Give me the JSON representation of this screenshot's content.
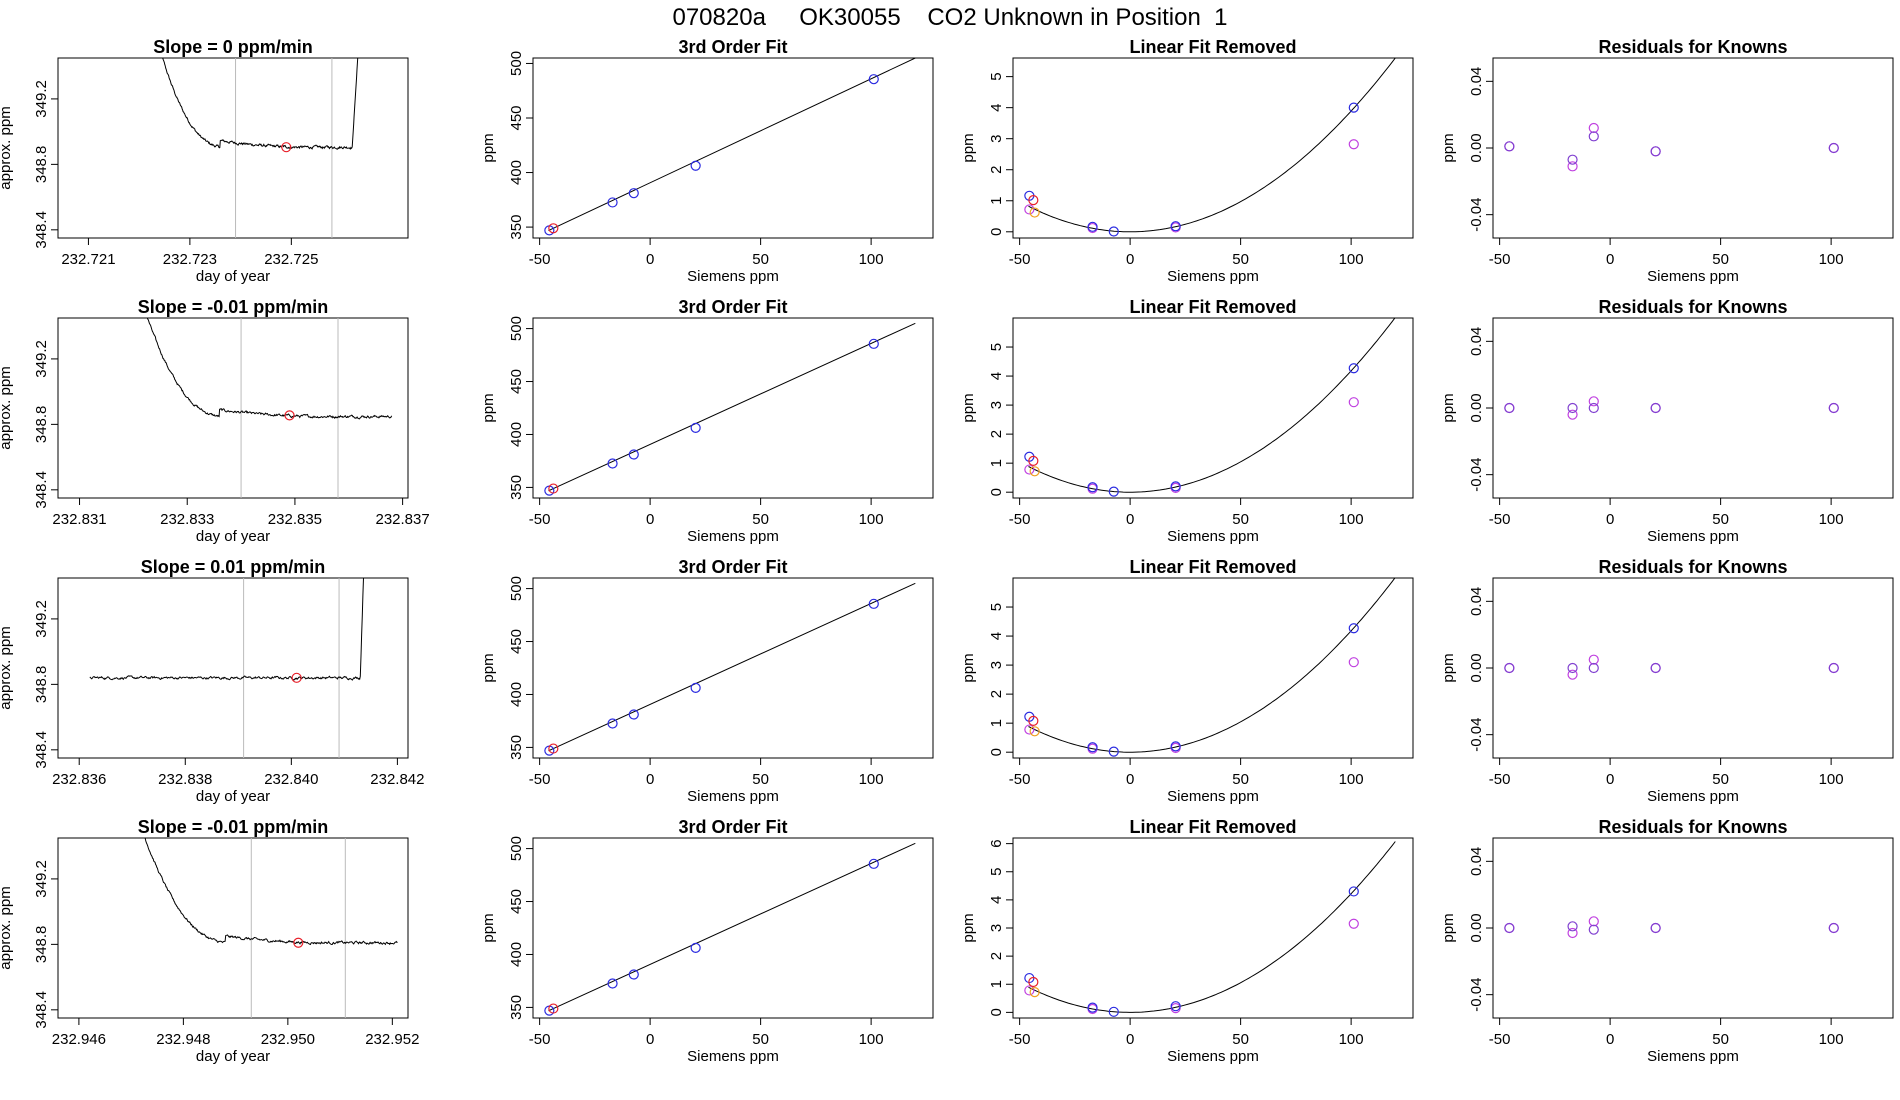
{
  "page_title": "070820a     OK30055    CO2 Unknown in Position  1",
  "colors": {
    "trace": "#000000",
    "red": "#e8202a",
    "blue": "#2a2ae0",
    "orange": "#f0a020",
    "magenta": "#c040e0",
    "purple": "#8040d0",
    "vline": "#bbbbbb"
  },
  "chart_data": [
    {
      "row": 0,
      "col": 0,
      "type": "line",
      "title": "Slope =  0  ppm/min",
      "xlabel": "day of year",
      "ylabel": "approx. ppm",
      "xlim": [
        232.7204,
        232.7273
      ],
      "ylim": [
        348.35,
        349.45
      ],
      "xticks": [
        232.721,
        232.723,
        232.725
      ],
      "xtick_labels": [
        "232.721",
        "232.723",
        "232.725"
      ],
      "yticks": [
        348.4,
        348.8,
        349.2
      ],
      "ytick_labels": [
        "348.4",
        "348.8",
        "349.2"
      ],
      "trace": {
        "kind": "decay-right-rise",
        "x_start": 232.7224,
        "x_end": 232.7264,
        "y_plateau": 348.905,
        "y_start_high": 349.45,
        "decay_end": 232.7236,
        "rise_start": 232.7262
      },
      "vlines": [
        232.7239,
        232.7258
      ],
      "point": {
        "x": 232.7249,
        "y": 348.905
      }
    },
    {
      "row": 0,
      "col": 1,
      "type": "scatter",
      "title": "3rd Order Fit",
      "xlabel": "Siemens ppm",
      "ylabel": "ppm",
      "xlim": [
        -53,
        128
      ],
      "ylim": [
        340,
        505
      ],
      "xticks": [
        -50,
        0,
        50,
        100
      ],
      "xtick_labels": [
        "-50",
        "0",
        "50",
        "100"
      ],
      "yticks": [
        350,
        400,
        450,
        500
      ],
      "ytick_labels": [
        "350",
        "400",
        "450",
        "500"
      ],
      "line": {
        "x": [
          -46,
          120
        ],
        "y": [
          346.8,
          505
        ]
      },
      "points_blue": [
        {
          "x": -45.6,
          "y": 347
        },
        {
          "x": -17,
          "y": 372.6
        },
        {
          "x": -7.4,
          "y": 381.1
        },
        {
          "x": 20.6,
          "y": 406.2
        },
        {
          "x": 101.2,
          "y": 485.6
        }
      ],
      "points_red": [
        {
          "x": -43.8,
          "y": 348.9
        }
      ]
    },
    {
      "row": 0,
      "col": 2,
      "type": "scatter",
      "title": "Linear Fit Removed",
      "xlabel": "Siemens ppm",
      "ylabel": "ppm",
      "xlim": [
        -53,
        128
      ],
      "ylim": [
        -0.2,
        5.6
      ],
      "xticks": [
        -50,
        0,
        50,
        100
      ],
      "xtick_labels": [
        "-50",
        "0",
        "50",
        "100"
      ],
      "yticks": [
        0,
        1,
        2,
        3,
        4,
        5
      ],
      "ytick_labels": [
        "0",
        "1",
        "2",
        "3",
        "4",
        "5"
      ],
      "curve": {
        "x0": -46,
        "x1": 120,
        "k": 0.000389
      },
      "points_blue": [
        {
          "x": -45.6,
          "y": 1.16
        },
        {
          "x": -17,
          "y": 0.16
        },
        {
          "x": -7.4,
          "y": 0.01
        },
        {
          "x": 20.6,
          "y": 0.18
        },
        {
          "x": 101.2,
          "y": 4.0
        }
      ],
      "points_magenta": [
        {
          "x": -45.6,
          "y": 0.72
        },
        {
          "x": -17,
          "y": 0.12
        },
        {
          "x": 20.6,
          "y": 0.14
        },
        {
          "x": 101.2,
          "y": 2.82
        }
      ],
      "points_orange": [
        {
          "x": -43.2,
          "y": 0.62
        }
      ],
      "points_red": [
        {
          "x": -43.8,
          "y": 1.02
        }
      ]
    },
    {
      "row": 0,
      "col": 3,
      "type": "scatter",
      "title": "Residuals for Knowns",
      "xlabel": "Siemens ppm",
      "ylabel": "ppm",
      "xlim": [
        -53,
        128
      ],
      "ylim": [
        -0.054,
        0.054
      ],
      "xticks": [
        -50,
        0,
        50,
        100
      ],
      "xtick_labels": [
        "-50",
        "0",
        "50",
        "100"
      ],
      "yticks": [
        -0.04,
        0,
        0.04
      ],
      "ytick_labels": [
        "-0.04",
        "0.00",
        "0.04"
      ],
      "points_purple": [
        {
          "x": -45.6,
          "y": 0.001
        },
        {
          "x": -17,
          "y": -0.007
        },
        {
          "x": -7.4,
          "y": 0.007
        },
        {
          "x": 20.6,
          "y": -0.002
        },
        {
          "x": 101.2,
          "y": 0
        }
      ],
      "points_magenta": [
        {
          "x": -45.6,
          "y": 0.001
        },
        {
          "x": -17,
          "y": -0.011
        },
        {
          "x": -7.4,
          "y": 0.012
        },
        {
          "x": 20.6,
          "y": -0.002
        },
        {
          "x": 101.2,
          "y": 0
        }
      ]
    },
    {
      "row": 1,
      "col": 0,
      "type": "line",
      "title": "Slope =  -0.01  ppm/min",
      "xlabel": "day of year",
      "ylabel": "approx. ppm",
      "xlim": [
        232.8306,
        232.8371
      ],
      "ylim": [
        348.35,
        349.45
      ],
      "xticks": [
        232.831,
        232.833,
        232.835,
        232.837
      ],
      "xtick_labels": [
        "232.831",
        "232.833",
        "232.835",
        "232.837"
      ],
      "yticks": [
        348.4,
        348.8,
        349.2
      ],
      "ytick_labels": [
        "348.4",
        "348.8",
        "349.2"
      ],
      "trace": {
        "kind": "decay",
        "x_start": 232.8322,
        "x_end": 232.8368,
        "y_plateau": 348.848,
        "y_start_high": 349.45,
        "decay_end": 232.8336
      },
      "vlines": [
        232.834,
        232.8358
      ],
      "point": {
        "x": 232.8349,
        "y": 348.855
      }
    },
    {
      "row": 1,
      "col": 1,
      "type": "scatter",
      "title": "3rd Order Fit",
      "xlabel": "Siemens ppm",
      "ylabel": "ppm",
      "xlim": [
        -53,
        128
      ],
      "ylim": [
        340,
        510
      ],
      "xticks": [
        -50,
        0,
        50,
        100
      ],
      "xtick_labels": [
        "-50",
        "0",
        "50",
        "100"
      ],
      "yticks": [
        350,
        400,
        450,
        500
      ],
      "ytick_labels": [
        "350",
        "400",
        "450",
        "500"
      ],
      "line": {
        "x": [
          -46,
          120
        ],
        "y": [
          346.8,
          505
        ]
      },
      "points_blue": [
        {
          "x": -45.6,
          "y": 347
        },
        {
          "x": -17,
          "y": 372.6
        },
        {
          "x": -7.4,
          "y": 381.1
        },
        {
          "x": 20.6,
          "y": 406.2
        },
        {
          "x": 101.2,
          "y": 485.6
        }
      ],
      "points_red": [
        {
          "x": -43.8,
          "y": 348.9
        }
      ]
    },
    {
      "row": 1,
      "col": 2,
      "type": "scatter",
      "title": "Linear Fit Removed",
      "xlabel": "Siemens ppm",
      "ylabel": "ppm",
      "xlim": [
        -53,
        128
      ],
      "ylim": [
        -0.2,
        6
      ],
      "xticks": [
        -50,
        0,
        50,
        100
      ],
      "xtick_labels": [
        "-50",
        "0",
        "50",
        "100"
      ],
      "yticks": [
        0,
        1,
        2,
        3,
        4,
        5
      ],
      "ytick_labels": [
        "0",
        "1",
        "2",
        "3",
        "4",
        "5"
      ],
      "curve": {
        "x0": -46,
        "x1": 120,
        "k": 0.000418
      },
      "points_blue": [
        {
          "x": -45.6,
          "y": 1.22
        },
        {
          "x": -17,
          "y": 0.17
        },
        {
          "x": -7.4,
          "y": 0.02
        },
        {
          "x": 20.6,
          "y": 0.2
        },
        {
          "x": 101.2,
          "y": 4.27
        }
      ],
      "points_magenta": [
        {
          "x": -45.6,
          "y": 0.78
        },
        {
          "x": -17,
          "y": 0.12
        },
        {
          "x": 20.6,
          "y": 0.15
        },
        {
          "x": 101.2,
          "y": 3.1
        }
      ],
      "points_orange": [
        {
          "x": -43.2,
          "y": 0.72
        }
      ],
      "points_red": [
        {
          "x": -43.8,
          "y": 1.08
        }
      ]
    },
    {
      "row": 1,
      "col": 3,
      "type": "scatter",
      "title": "Residuals for Knowns",
      "xlabel": "Siemens ppm",
      "ylabel": "ppm",
      "xlim": [
        -53,
        128
      ],
      "ylim": [
        -0.054,
        0.054
      ],
      "xticks": [
        -50,
        0,
        50,
        100
      ],
      "xtick_labels": [
        "-50",
        "0",
        "50",
        "100"
      ],
      "yticks": [
        -0.04,
        0,
        0.04
      ],
      "ytick_labels": [
        "-0.04",
        "0.00",
        "0.04"
      ],
      "points_purple": [
        {
          "x": -45.6,
          "y": 0.0
        },
        {
          "x": -17,
          "y": 0.0
        },
        {
          "x": -7.4,
          "y": 0.0
        },
        {
          "x": 20.6,
          "y": 0.0
        },
        {
          "x": 101.2,
          "y": 0
        }
      ],
      "points_magenta": [
        {
          "x": -45.6,
          "y": 0.0
        },
        {
          "x": -17,
          "y": -0.004
        },
        {
          "x": -7.4,
          "y": 0.004
        },
        {
          "x": 20.6,
          "y": 0.0
        },
        {
          "x": 101.2,
          "y": 0
        }
      ]
    },
    {
      "row": 2,
      "col": 0,
      "type": "line",
      "title": "Slope =  0.01  ppm/min",
      "xlabel": "day of year",
      "ylabel": "approx. ppm",
      "xlim": [
        232.8356,
        232.8422
      ],
      "ylim": [
        348.35,
        349.45
      ],
      "xticks": [
        232.836,
        232.838,
        232.84,
        232.842
      ],
      "xtick_labels": [
        "232.836",
        "232.838",
        "232.840",
        "232.842"
      ],
      "yticks": [
        348.4,
        348.8,
        349.2
      ],
      "ytick_labels": [
        "348.4",
        "348.8",
        "349.2"
      ],
      "trace": {
        "kind": "flat-rise",
        "x_start": 232.8362,
        "x_end": 232.8414,
        "y_plateau": 348.84,
        "rise_start": 232.8413
      },
      "vlines": [
        232.8391,
        232.8409
      ],
      "point": {
        "x": 232.8401,
        "y": 348.84
      }
    },
    {
      "row": 2,
      "col": 1,
      "type": "scatter",
      "title": "3rd Order Fit",
      "xlabel": "Siemens ppm",
      "ylabel": "ppm",
      "xlim": [
        -53,
        128
      ],
      "ylim": [
        340,
        510
      ],
      "xticks": [
        -50,
        0,
        50,
        100
      ],
      "xtick_labels": [
        "-50",
        "0",
        "50",
        "100"
      ],
      "yticks": [
        350,
        400,
        450,
        500
      ],
      "ytick_labels": [
        "350",
        "400",
        "450",
        "500"
      ],
      "line": {
        "x": [
          -46,
          120
        ],
        "y": [
          346.8,
          505
        ]
      },
      "points_blue": [
        {
          "x": -45.6,
          "y": 347
        },
        {
          "x": -17,
          "y": 372.6
        },
        {
          "x": -7.4,
          "y": 381.1
        },
        {
          "x": 20.6,
          "y": 406.2
        },
        {
          "x": 101.2,
          "y": 485.6
        }
      ],
      "points_red": [
        {
          "x": -43.8,
          "y": 348.9
        }
      ]
    },
    {
      "row": 2,
      "col": 2,
      "type": "scatter",
      "title": "Linear Fit Removed",
      "xlabel": "Siemens ppm",
      "ylabel": "ppm",
      "xlim": [
        -53,
        128
      ],
      "ylim": [
        -0.2,
        6
      ],
      "xticks": [
        -50,
        0,
        50,
        100
      ],
      "xtick_labels": [
        "-50",
        "0",
        "50",
        "100"
      ],
      "yticks": [
        0,
        1,
        2,
        3,
        4,
        5
      ],
      "ytick_labels": [
        "0",
        "1",
        "2",
        "3",
        "4",
        "5"
      ],
      "curve": {
        "x0": -46,
        "x1": 120,
        "k": 0.000418
      },
      "points_blue": [
        {
          "x": -45.6,
          "y": 1.22
        },
        {
          "x": -17,
          "y": 0.17
        },
        {
          "x": -7.4,
          "y": 0.02
        },
        {
          "x": 20.6,
          "y": 0.2
        },
        {
          "x": 101.2,
          "y": 4.27
        }
      ],
      "points_magenta": [
        {
          "x": -45.6,
          "y": 0.78
        },
        {
          "x": -17,
          "y": 0.12
        },
        {
          "x": 20.6,
          "y": 0.15
        },
        {
          "x": 101.2,
          "y": 3.1
        }
      ],
      "points_orange": [
        {
          "x": -43.2,
          "y": 0.72
        }
      ],
      "points_red": [
        {
          "x": -43.8,
          "y": 1.08
        }
      ]
    },
    {
      "row": 2,
      "col": 3,
      "type": "scatter",
      "title": "Residuals for Knowns",
      "xlabel": "Siemens ppm",
      "ylabel": "ppm",
      "xlim": [
        -53,
        128
      ],
      "ylim": [
        -0.054,
        0.054
      ],
      "xticks": [
        -50,
        0,
        50,
        100
      ],
      "xtick_labels": [
        "-50",
        "0",
        "50",
        "100"
      ],
      "yticks": [
        -0.04,
        0,
        0.04
      ],
      "ytick_labels": [
        "-0.04",
        "0.00",
        "0.04"
      ],
      "points_purple": [
        {
          "x": -45.6,
          "y": 0.0
        },
        {
          "x": -17,
          "y": 0.0
        },
        {
          "x": -7.4,
          "y": 0.0
        },
        {
          "x": 20.6,
          "y": 0.0
        },
        {
          "x": 101.2,
          "y": 0
        }
      ],
      "points_magenta": [
        {
          "x": -45.6,
          "y": 0.0
        },
        {
          "x": -17,
          "y": -0.004
        },
        {
          "x": -7.4,
          "y": 0.005
        },
        {
          "x": 20.6,
          "y": 0.0
        },
        {
          "x": 101.2,
          "y": 0
        }
      ]
    },
    {
      "row": 3,
      "col": 0,
      "type": "line",
      "title": "Slope =  -0.01  ppm/min",
      "xlabel": "day of year",
      "ylabel": "approx. ppm",
      "xlim": [
        232.9456,
        232.9523
      ],
      "ylim": [
        348.35,
        349.45
      ],
      "xticks": [
        232.946,
        232.948,
        232.95,
        232.952
      ],
      "xtick_labels": [
        "232.946",
        "232.948",
        "232.950",
        "232.952"
      ],
      "yticks": [
        348.4,
        348.8,
        349.2
      ],
      "ytick_labels": [
        "348.4",
        "348.8",
        "349.2"
      ],
      "trace": {
        "kind": "decay",
        "x_start": 232.9472,
        "x_end": 232.9521,
        "y_plateau": 348.81,
        "y_start_high": 349.45,
        "decay_end": 232.9488
      },
      "vlines": [
        232.9493,
        232.9511
      ],
      "point": {
        "x": 232.9502,
        "y": 348.81
      }
    },
    {
      "row": 3,
      "col": 1,
      "type": "scatter",
      "title": "3rd Order Fit",
      "xlabel": "Siemens ppm",
      "ylabel": "ppm",
      "xlim": [
        -53,
        128
      ],
      "ylim": [
        340,
        510
      ],
      "xticks": [
        -50,
        0,
        50,
        100
      ],
      "xtick_labels": [
        "-50",
        "0",
        "50",
        "100"
      ],
      "yticks": [
        350,
        400,
        450,
        500
      ],
      "ytick_labels": [
        "350",
        "400",
        "450",
        "500"
      ],
      "line": {
        "x": [
          -46,
          120
        ],
        "y": [
          346.8,
          505
        ]
      },
      "points_blue": [
        {
          "x": -45.6,
          "y": 347
        },
        {
          "x": -17,
          "y": 372.6
        },
        {
          "x": -7.4,
          "y": 381.1
        },
        {
          "x": 20.6,
          "y": 406.2
        },
        {
          "x": 101.2,
          "y": 485.6
        }
      ],
      "points_red": [
        {
          "x": -43.8,
          "y": 348.9
        }
      ]
    },
    {
      "row": 3,
      "col": 2,
      "type": "scatter",
      "title": "Linear Fit Removed",
      "xlabel": "Siemens ppm",
      "ylabel": "ppm",
      "xlim": [
        -53,
        128
      ],
      "ylim": [
        -0.2,
        6.2
      ],
      "xticks": [
        -50,
        0,
        50,
        100
      ],
      "xtick_labels": [
        "-50",
        "0",
        "50",
        "100"
      ],
      "yticks": [
        0,
        1,
        2,
        3,
        4,
        5,
        6
      ],
      "ytick_labels": [
        "0",
        "1",
        "2",
        "3",
        "4",
        "5",
        "6"
      ],
      "curve": {
        "x0": -46,
        "x1": 120,
        "k": 0.000422
      },
      "points_blue": [
        {
          "x": -45.6,
          "y": 1.22
        },
        {
          "x": -17,
          "y": 0.17
        },
        {
          "x": -7.4,
          "y": 0.02
        },
        {
          "x": 20.6,
          "y": 0.22
        },
        {
          "x": 101.2,
          "y": 4.3
        }
      ],
      "points_magenta": [
        {
          "x": -45.6,
          "y": 0.78
        },
        {
          "x": -17,
          "y": 0.12
        },
        {
          "x": 20.6,
          "y": 0.15
        },
        {
          "x": 101.2,
          "y": 3.15
        }
      ],
      "points_orange": [
        {
          "x": -43.2,
          "y": 0.72
        }
      ],
      "points_red": [
        {
          "x": -43.8,
          "y": 1.08
        }
      ]
    },
    {
      "row": 3,
      "col": 3,
      "type": "scatter",
      "title": "Residuals for Knowns",
      "xlabel": "Siemens ppm",
      "ylabel": "ppm",
      "xlim": [
        -53,
        128
      ],
      "ylim": [
        -0.054,
        0.054
      ],
      "xticks": [
        -50,
        0,
        50,
        100
      ],
      "xtick_labels": [
        "-50",
        "0",
        "50",
        "100"
      ],
      "yticks": [
        -0.04,
        0,
        0.04
      ],
      "ytick_labels": [
        "-0.04",
        "0.00",
        "0.04"
      ],
      "points_purple": [
        {
          "x": -45.6,
          "y": 0.0
        },
        {
          "x": -17,
          "y": 0.001
        },
        {
          "x": -7.4,
          "y": -0.001
        },
        {
          "x": 20.6,
          "y": 0.0
        },
        {
          "x": 101.2,
          "y": 0
        }
      ],
      "points_magenta": [
        {
          "x": -45.6,
          "y": 0.0
        },
        {
          "x": -17,
          "y": -0.003
        },
        {
          "x": -7.4,
          "y": 0.004
        },
        {
          "x": 20.6,
          "y": 0.0
        },
        {
          "x": 101.2,
          "y": 0
        }
      ]
    }
  ]
}
